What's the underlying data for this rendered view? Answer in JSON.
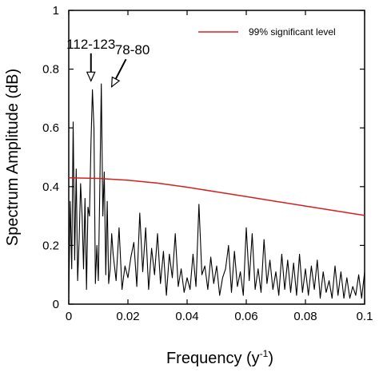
{
  "chart_data": {
    "type": "line",
    "xlabel": "Frequency (y",
    "xlabel_sup": "-1",
    "xlabel_close": ")",
    "ylabel": "Spectrum Amplitude (dB)",
    "xlim": [
      0,
      0.1
    ],
    "ylim": [
      0,
      1
    ],
    "xticks": [
      0,
      0.02,
      0.04,
      0.06,
      0.08,
      0.1
    ],
    "xtick_labels": [
      "0",
      "0.02",
      "0.04",
      "0.06",
      "0.08",
      "0.1"
    ],
    "yticks": [
      0,
      0.2,
      0.4,
      0.6,
      0.8,
      1
    ],
    "ytick_labels": [
      "0",
      "0.2",
      "0.4",
      "0.6",
      "0.8",
      "1"
    ],
    "grid": false,
    "legend_position": "top-right",
    "series": [
      {
        "name": "",
        "color": "#000000",
        "x": [
          0,
          0.0005,
          0.001,
          0.0015,
          0.002,
          0.0025,
          0.003,
          0.0035,
          0.004,
          0.0045,
          0.005,
          0.0055,
          0.006,
          0.0065,
          0.007,
          0.0075,
          0.008,
          0.0085,
          0.009,
          0.0095,
          0.01,
          0.0105,
          0.011,
          0.0115,
          0.012,
          0.0125,
          0.013,
          0.0135,
          0.014,
          0.0145,
          0.015,
          0.016,
          0.017,
          0.018,
          0.019,
          0.02,
          0.021,
          0.022,
          0.023,
          0.024,
          0.025,
          0.026,
          0.027,
          0.028,
          0.029,
          0.03,
          0.031,
          0.032,
          0.033,
          0.034,
          0.035,
          0.036,
          0.037,
          0.038,
          0.039,
          0.04,
          0.041,
          0.042,
          0.043,
          0.044,
          0.045,
          0.046,
          0.047,
          0.048,
          0.049,
          0.05,
          0.051,
          0.052,
          0.053,
          0.054,
          0.055,
          0.056,
          0.057,
          0.058,
          0.059,
          0.06,
          0.061,
          0.062,
          0.063,
          0.064,
          0.065,
          0.066,
          0.067,
          0.068,
          0.069,
          0.07,
          0.071,
          0.072,
          0.073,
          0.074,
          0.075,
          0.076,
          0.077,
          0.078,
          0.079,
          0.08,
          0.081,
          0.082,
          0.083,
          0.084,
          0.085,
          0.086,
          0.087,
          0.088,
          0.089,
          0.09,
          0.091,
          0.092,
          0.093,
          0.094,
          0.095,
          0.096,
          0.097,
          0.098,
          0.099,
          0.1
        ],
        "values": [
          0.02,
          0.35,
          0.12,
          0.62,
          0.15,
          0.46,
          0.08,
          0.22,
          0.41,
          0.3,
          0.12,
          0.36,
          0.05,
          0.33,
          0.3,
          0.55,
          0.73,
          0.6,
          0.07,
          0.2,
          0.08,
          0.39,
          0.75,
          0.3,
          0.45,
          0.1,
          0.35,
          0.07,
          0.12,
          0.24,
          0.17,
          0.08,
          0.26,
          0.05,
          0.13,
          0.09,
          0.16,
          0.21,
          0.06,
          0.31,
          0.11,
          0.26,
          0.05,
          0.19,
          0.1,
          0.24,
          0.07,
          0.18,
          0.03,
          0.17,
          0.09,
          0.24,
          0.06,
          0.12,
          0.04,
          0.09,
          0.05,
          0.17,
          0.06,
          0.34,
          0.1,
          0.13,
          0.05,
          0.16,
          0.07,
          0.13,
          0.03,
          0.09,
          0.12,
          0.2,
          0.04,
          0.18,
          0.06,
          0.11,
          0.03,
          0.26,
          0.08,
          0.24,
          0.05,
          0.12,
          0.04,
          0.22,
          0.07,
          0.15,
          0.05,
          0.11,
          0.03,
          0.17,
          0.05,
          0.15,
          0.04,
          0.14,
          0.03,
          0.17,
          0.04,
          0.12,
          0.03,
          0.13,
          0.05,
          0.15,
          0.02,
          0.11,
          0.04,
          0.08,
          0.02,
          0.13,
          0.03,
          0.11,
          0.02,
          0.09,
          0.02,
          0.06,
          0.03,
          0.1,
          0.02,
          0.11
        ]
      },
      {
        "name": "99% significant level",
        "color": "#d42020",
        "x": [
          0,
          0.01,
          0.02,
          0.03,
          0.04,
          0.05,
          0.06,
          0.07,
          0.08,
          0.09,
          0.1
        ],
        "values": [
          0.43,
          0.428,
          0.422,
          0.412,
          0.398,
          0.382,
          0.366,
          0.35,
          0.334,
          0.318,
          0.302
        ]
      }
    ],
    "annotations": [
      {
        "text": "112-123",
        "x": 0.0075,
        "y": 0.87,
        "arrow_to": [
          0.0075,
          0.76
        ]
      },
      {
        "text": "78-80",
        "x": 0.0215,
        "y": 0.85,
        "arrow_to": [
          0.0145,
          0.74
        ]
      }
    ]
  }
}
